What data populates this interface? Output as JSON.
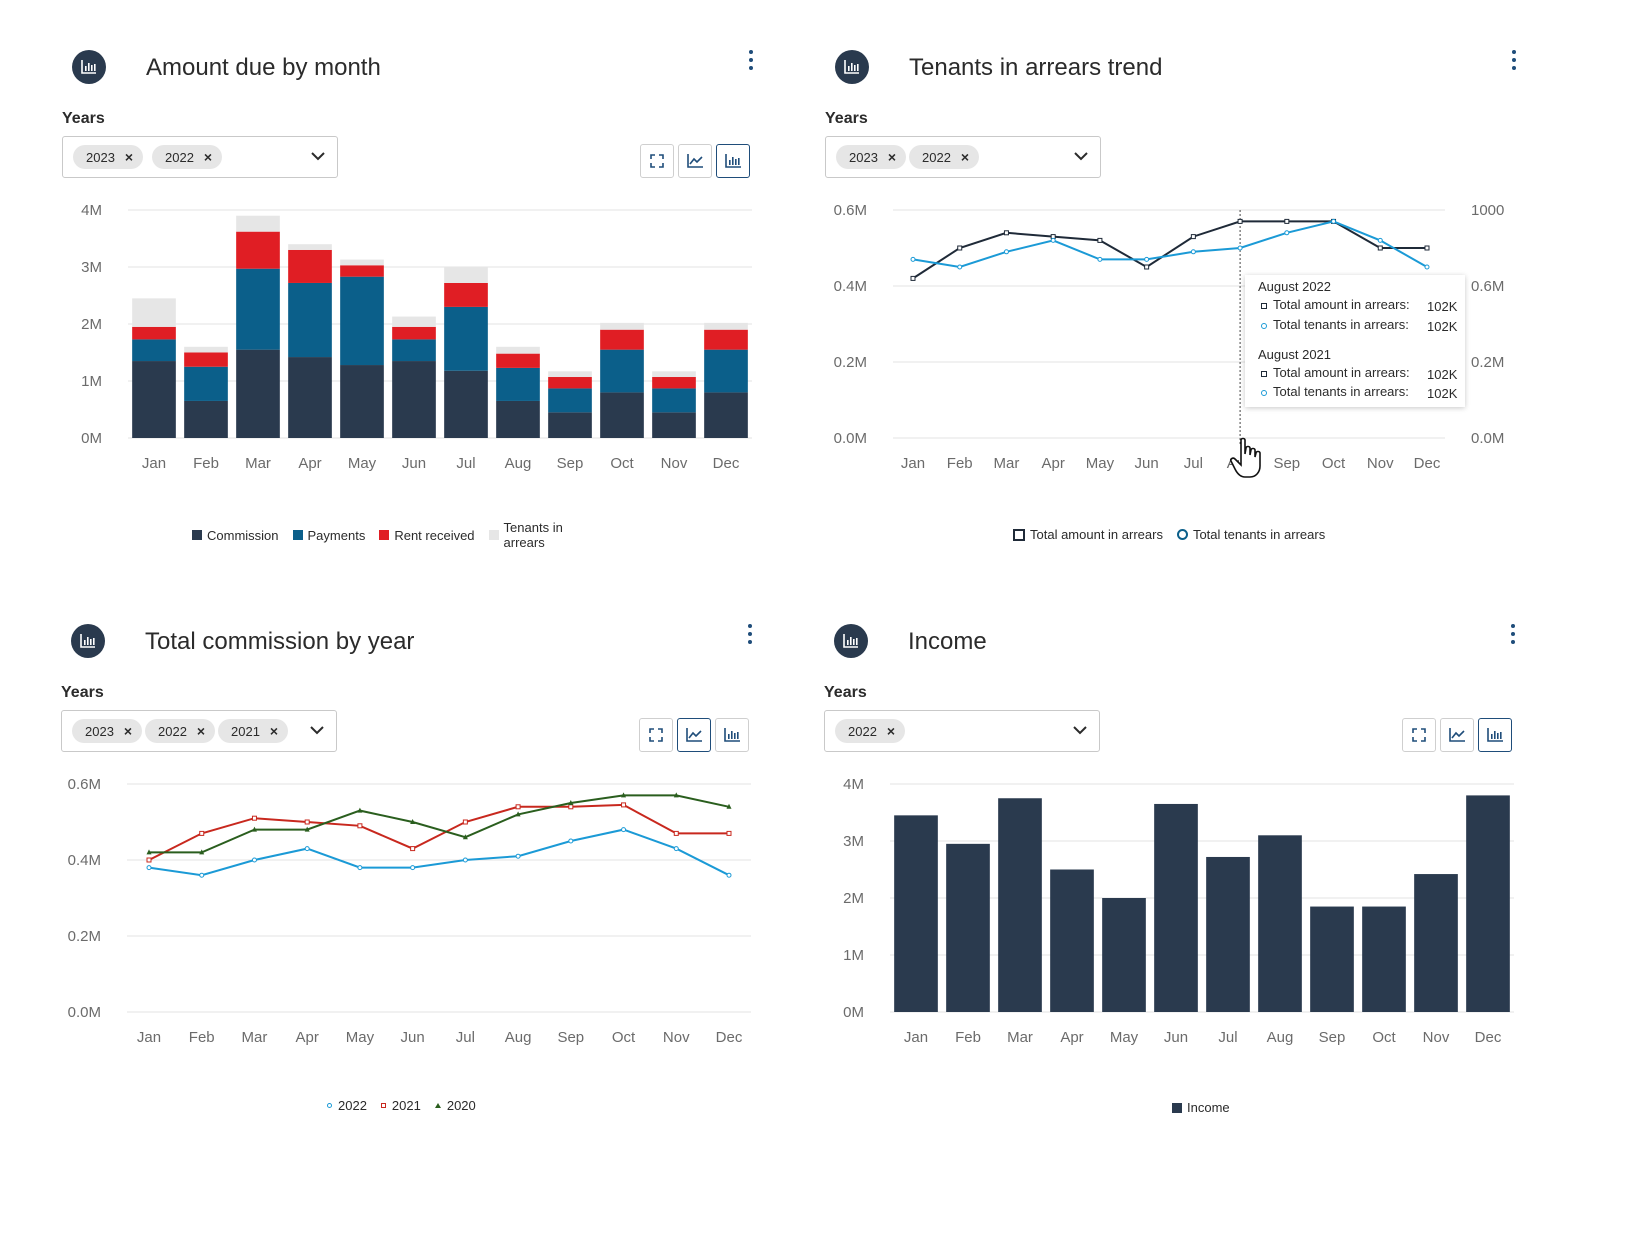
{
  "colors": {
    "navy": "#2a3a4e",
    "blue": "#0b5f8a",
    "red": "#e01e24",
    "light": "#e6e6e6",
    "sky": "#1b9ad6",
    "dark": "#1f2a38",
    "green": "#2a5e1e",
    "red2": "#c8281e",
    "accent": "#1f4d7a"
  },
  "years_label": "Years",
  "panels": {
    "amount": {
      "title": "Amount due by month",
      "chips": [
        "2023",
        "2022"
      ],
      "legend": [
        "Commission",
        "Payments",
        "Rent received",
        "Tenants in arrears"
      ]
    },
    "arrears": {
      "title": "Tenants in arrears trend",
      "chips": [
        "2023",
        "2022"
      ],
      "legend": [
        "Total amount in arrears",
        "Total tenants in arrears"
      ],
      "tooltip": {
        "groups": [
          {
            "label": "August 2022",
            "rows": [
              {
                "name": "Total amount in arrears:",
                "value": "102K"
              },
              {
                "name": "Total tenants in arrears:",
                "value": "102K"
              }
            ]
          },
          {
            "label": "August 2021",
            "rows": [
              {
                "name": "Total amount in arrears:",
                "value": "102K"
              },
              {
                "name": "Total tenants in arrears:",
                "value": "102K"
              }
            ]
          }
        ]
      }
    },
    "commission": {
      "title": "Total commission by year",
      "chips": [
        "2023",
        "2022",
        "2021"
      ],
      "legend": [
        "2022",
        "2021",
        "2020"
      ]
    },
    "income": {
      "title": "Income",
      "chips": [
        "2022"
      ],
      "legend": [
        "Income"
      ]
    }
  },
  "chart_data": [
    {
      "id": "amount",
      "type": "bar",
      "stacked": true,
      "title": "Amount due by month",
      "categories": [
        "Jan",
        "Feb",
        "Mar",
        "Apr",
        "May",
        "Jun",
        "Jul",
        "Aug",
        "Sep",
        "Oct",
        "Nov",
        "Dec"
      ],
      "series": [
        {
          "name": "Commission",
          "values": [
            1.35,
            0.65,
            1.55,
            1.42,
            1.28,
            1.35,
            1.18,
            0.65,
            0.45,
            0.8,
            0.45,
            0.8
          ]
        },
        {
          "name": "Payments",
          "values": [
            0.38,
            0.6,
            1.42,
            1.3,
            1.55,
            0.38,
            1.12,
            0.58,
            0.42,
            0.75,
            0.42,
            0.75
          ]
        },
        {
          "name": "Rent received",
          "values": [
            0.22,
            0.25,
            0.65,
            0.58,
            0.2,
            0.22,
            0.42,
            0.25,
            0.2,
            0.35,
            0.2,
            0.35
          ]
        },
        {
          "name": "Tenants in arrears",
          "values": [
            0.5,
            0.1,
            0.28,
            0.1,
            0.1,
            0.18,
            0.28,
            0.12,
            0.1,
            0.12,
            0.1,
            0.12
          ]
        }
      ],
      "yticks": [
        "0M",
        "1M",
        "2M",
        "3M",
        "4M"
      ],
      "ylim": [
        0,
        4
      ]
    },
    {
      "id": "arrears",
      "type": "line",
      "title": "Tenants in arrears trend",
      "categories": [
        "Jan",
        "Feb",
        "Mar",
        "Apr",
        "May",
        "Jun",
        "Jul",
        "Aug",
        "Sep",
        "Oct",
        "Nov",
        "Dec"
      ],
      "series": [
        {
          "name": "Total amount in arrears",
          "values": [
            0.42,
            0.5,
            0.54,
            0.53,
            0.52,
            0.45,
            0.53,
            0.57,
            0.57,
            0.57,
            0.5,
            0.5
          ]
        },
        {
          "name": "Total tenants in arrears",
          "values": [
            0.47,
            0.45,
            0.49,
            0.52,
            0.47,
            0.47,
            0.49,
            0.5,
            0.54,
            0.57,
            0.52,
            0.45
          ]
        }
      ],
      "yticks_left": [
        "0.0M",
        "0.2M",
        "0.4M",
        "0.6M"
      ],
      "yticks_right": [
        "0.0M",
        "0.2M",
        "0.6M",
        "1000"
      ],
      "ylim": [
        0,
        0.6
      ],
      "highlight": "Aug"
    },
    {
      "id": "commission",
      "type": "line",
      "title": "Total commission by year",
      "categories": [
        "Jan",
        "Feb",
        "Mar",
        "Apr",
        "May",
        "Jun",
        "Jul",
        "Aug",
        "Sep",
        "Oct",
        "Nov",
        "Dec"
      ],
      "series": [
        {
          "name": "2022",
          "values": [
            0.38,
            0.36,
            0.4,
            0.43,
            0.38,
            0.38,
            0.4,
            0.41,
            0.45,
            0.48,
            0.43,
            0.36
          ]
        },
        {
          "name": "2021",
          "values": [
            0.4,
            0.47,
            0.51,
            0.5,
            0.49,
            0.43,
            0.5,
            0.54,
            0.54,
            0.545,
            0.47,
            0.47
          ]
        },
        {
          "name": "2020",
          "values": [
            0.42,
            0.42,
            0.48,
            0.48,
            0.53,
            0.5,
            0.46,
            0.52,
            0.55,
            0.57,
            0.57,
            0.54
          ]
        }
      ],
      "yticks": [
        "0.0M",
        "0.2M",
        "0.4M",
        "0.6M"
      ],
      "ylim": [
        0,
        0.6
      ]
    },
    {
      "id": "income",
      "type": "bar",
      "title": "Income",
      "categories": [
        "Jan",
        "Feb",
        "Mar",
        "Apr",
        "May",
        "Jun",
        "Jul",
        "Aug",
        "Sep",
        "Oct",
        "Nov",
        "Dec"
      ],
      "series": [
        {
          "name": "Income",
          "values": [
            3.45,
            2.95,
            3.75,
            2.5,
            2.0,
            3.65,
            2.72,
            3.1,
            1.85,
            1.85,
            2.42,
            3.8
          ]
        }
      ],
      "yticks": [
        "0M",
        "1M",
        "2M",
        "3M",
        "4M"
      ],
      "ylim": [
        0,
        4
      ]
    }
  ]
}
